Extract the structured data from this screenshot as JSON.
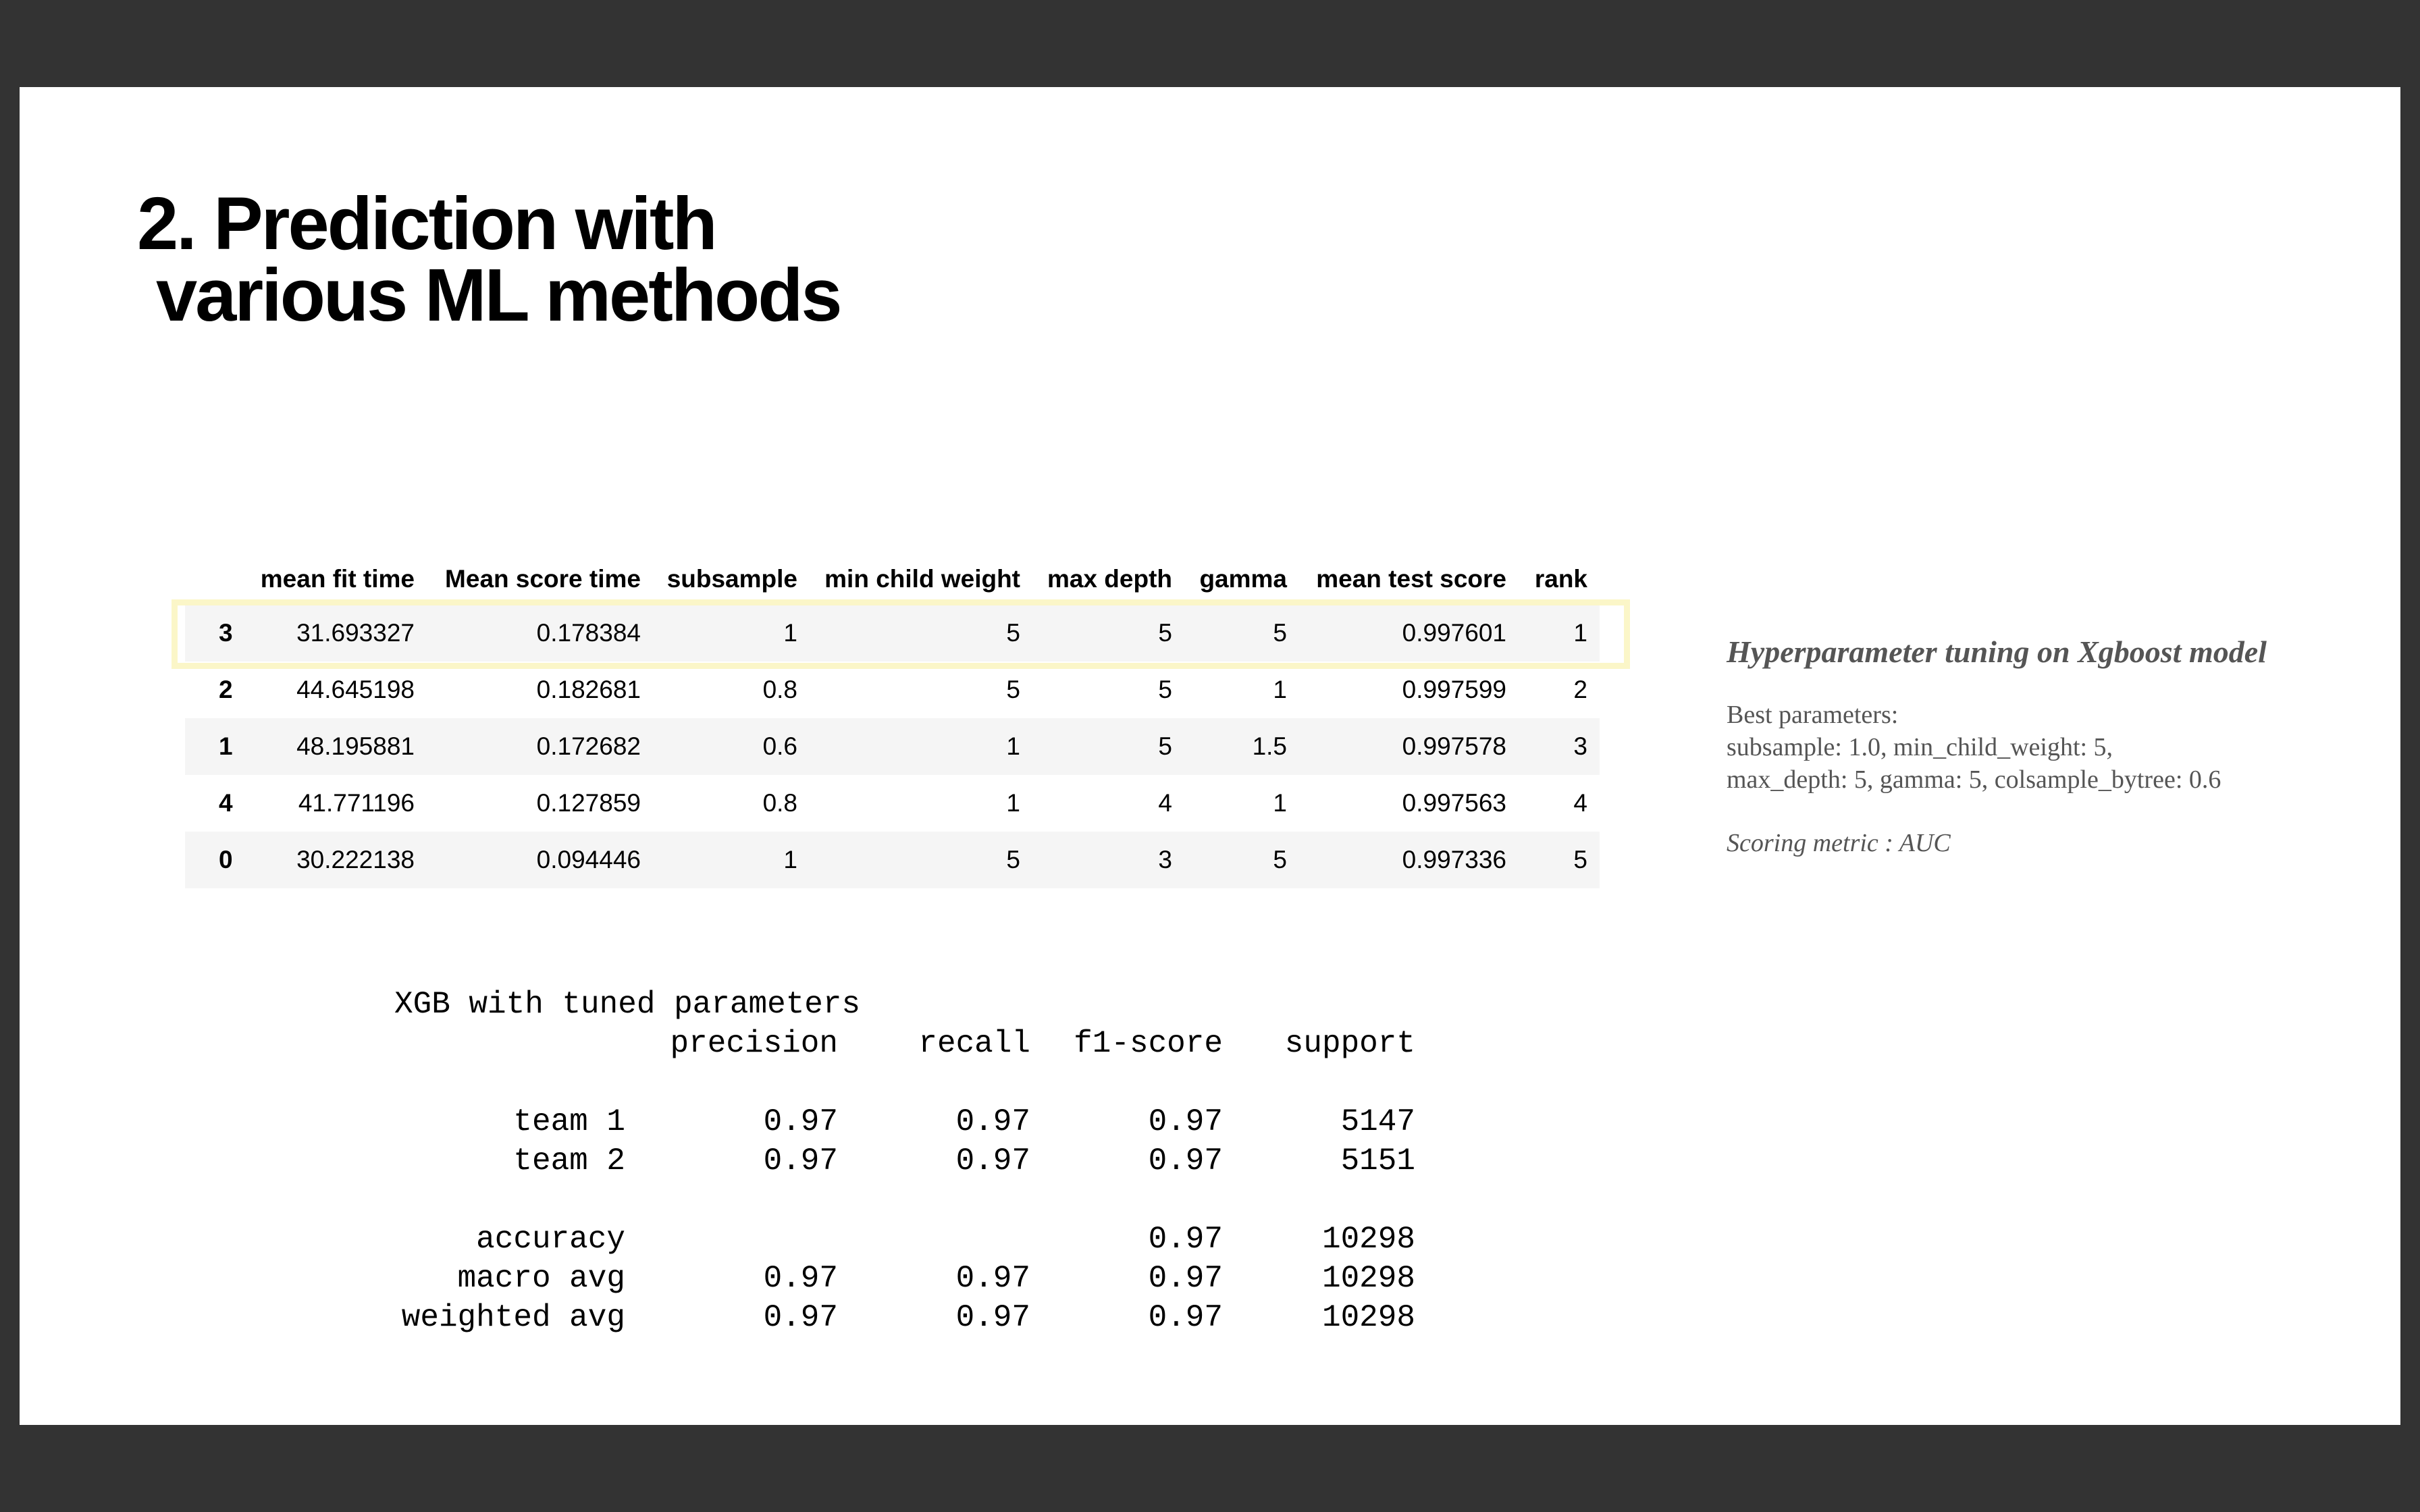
{
  "title": {
    "line1": "2. Prediction with",
    "line2": "various ML methods"
  },
  "table": {
    "headers": [
      "",
      "mean fit time",
      "Mean score time",
      "subsample",
      "min child weight",
      "max depth",
      "gamma",
      "mean test score",
      "rank"
    ],
    "rows": [
      [
        "3",
        "31.693327",
        "0.178384",
        "1",
        "5",
        "5",
        "5",
        "0.997601",
        "1"
      ],
      [
        "2",
        "44.645198",
        "0.182681",
        "0.8",
        "5",
        "5",
        "1",
        "0.997599",
        "2"
      ],
      [
        "1",
        "48.195881",
        "0.172682",
        "0.6",
        "1",
        "5",
        "1.5",
        "0.997578",
        "3"
      ],
      [
        "4",
        "41.771196",
        "0.127859",
        "0.8",
        "1",
        "4",
        "1",
        "0.997563",
        "4"
      ],
      [
        "0",
        "30.222138",
        "0.094446",
        "1",
        "5",
        "3",
        "5",
        "0.997336",
        "5"
      ]
    ],
    "highlight_color": "#fbf6c8"
  },
  "report": {
    "title": "XGB with tuned parameters",
    "columns": [
      "precision",
      "recall",
      "f1-score",
      "support"
    ],
    "rows": [
      {
        "label": "team 1",
        "precision": "0.97",
        "recall": "0.97",
        "f1": "0.97",
        "support": "5147"
      },
      {
        "label": "team 2",
        "precision": "0.97",
        "recall": "0.97",
        "f1": "0.97",
        "support": "5151"
      }
    ],
    "summary": [
      {
        "label": "accuracy",
        "precision": "",
        "recall": "",
        "f1": "0.97",
        "support": "10298"
      },
      {
        "label": "macro avg",
        "precision": "0.97",
        "recall": "0.97",
        "f1": "0.97",
        "support": "10298"
      },
      {
        "label": "weighted avg",
        "precision": "0.97",
        "recall": "0.97",
        "f1": "0.97",
        "support": "10298"
      }
    ]
  },
  "note": {
    "title": "Hyperparameter tuning on Xgboost model",
    "best_label": "Best parameters:",
    "line1": "subsample: 1.0, min_child_weight: 5,",
    "line2": "max_depth: 5, gamma: 5, colsample_bytree: 0.6",
    "metric": "Scoring metric : AUC"
  }
}
